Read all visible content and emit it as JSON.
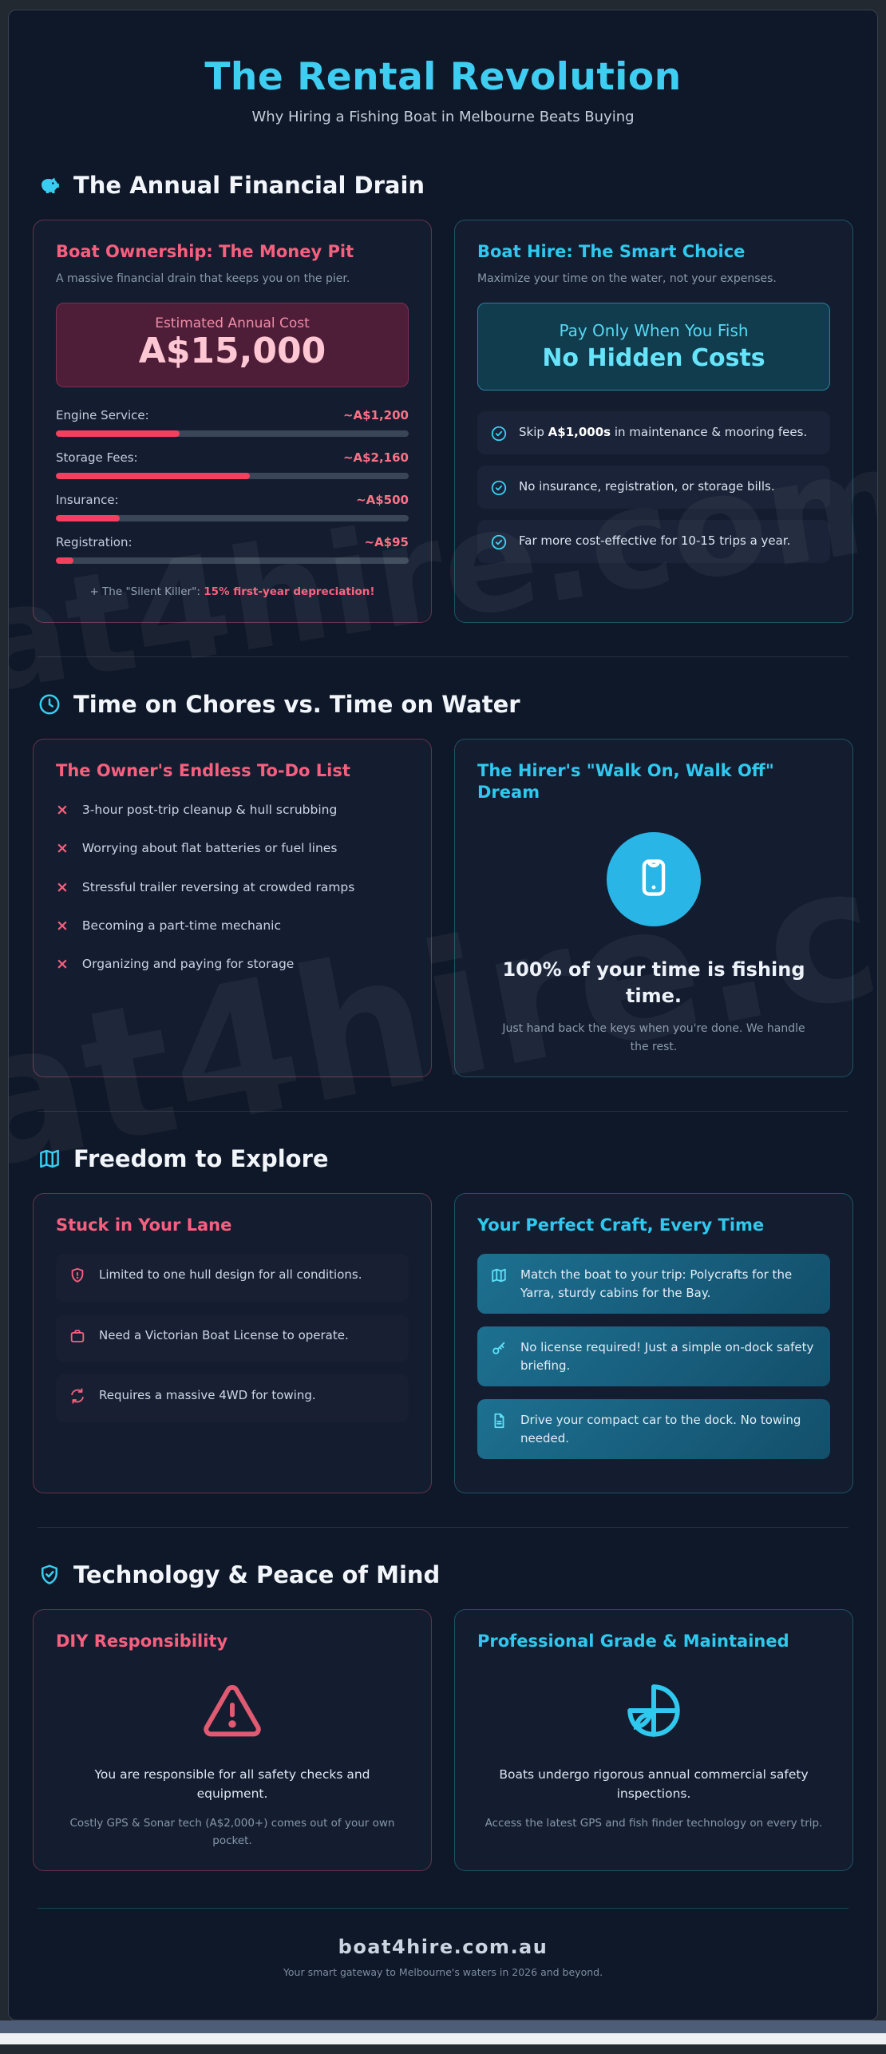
{
  "page": {
    "title": "The Rental Revolution",
    "subtitle": "Why Hiring a Fishing Boat in Melbourne Beats Buying",
    "watermark": "at4hire.com"
  },
  "colors": {
    "accent_cyan": "#38cdf1",
    "accent_pink": "#f6607e",
    "progress_fill": "#f43f5e",
    "cost_box_bg": "#4e1e38",
    "teal_box_bg": "#103c4e",
    "page_bg": "#0f1828"
  },
  "financial": {
    "heading": "The Annual Financial Drain",
    "owner": {
      "title": "Boat Ownership: The Money Pit",
      "subtitle": "A massive financial drain that keeps you on the pier.",
      "cost_label": "Estimated Annual Cost",
      "cost_value": "A$15,000",
      "items": [
        {
          "label": "Engine Service:",
          "value": "~A$1,200",
          "pct": 35
        },
        {
          "label": "Storage Fees:",
          "value": "~A$2,160",
          "pct": 55
        },
        {
          "label": "Insurance:",
          "value": "~A$500",
          "pct": 18
        },
        {
          "label": "Registration:",
          "value": "~A$95",
          "pct": 5
        }
      ],
      "note_prefix": "+ The \"Silent Killer\": ",
      "note_bold": "15% first-year depreciation!"
    },
    "hire": {
      "title": "Boat Hire: The Smart Choice",
      "subtitle": "Maximize your time on the water, not your expenses.",
      "banner_line1": "Pay Only When You Fish",
      "banner_line2": "No Hidden Costs",
      "benefits": [
        {
          "pre": "Skip ",
          "bold": "A$1,000s",
          "post": " in maintenance & mooring fees."
        },
        {
          "pre": "No insurance, registration, or storage bills.",
          "bold": "",
          "post": ""
        },
        {
          "pre": "Far more cost-effective for 10-15 trips a year.",
          "bold": "",
          "post": ""
        }
      ]
    }
  },
  "time": {
    "heading": "Time on Chores vs. Time on Water",
    "owner": {
      "title": "The Owner's Endless To-Do List",
      "items": [
        "3-hour post-trip cleanup & hull scrubbing",
        "Worrying about flat batteries or fuel lines",
        "Stressful trailer reversing at crowded ramps",
        "Becoming a part-time mechanic",
        "Organizing and paying for storage"
      ]
    },
    "hirer": {
      "title": "The Hirer's \"Walk On, Walk Off\" Dream",
      "headline": "100% of your time is fishing time.",
      "subtext": "Just hand back the keys when you're done. We handle the rest."
    }
  },
  "freedom": {
    "heading": "Freedom to Explore",
    "owner": {
      "title": "Stuck in Your Lane",
      "items": [
        "Limited to one hull design for all conditions.",
        "Need a Victorian Boat License to operate.",
        "Requires a massive 4WD for towing."
      ]
    },
    "hire": {
      "title": "Your Perfect Craft, Every Time",
      "items": [
        "Match the boat to your trip: Polycrafts for the Yarra, sturdy cabins for the Bay.",
        "No license required! Just a simple on-dock safety briefing.",
        "Drive your compact car to the dock. No towing needed."
      ]
    }
  },
  "tech": {
    "heading": "Technology & Peace of Mind",
    "owner": {
      "title": "DIY Responsibility",
      "main": "You are responsible for all safety checks and equipment.",
      "sub": "Costly GPS & Sonar tech (A$2,000+) comes out of your own pocket."
    },
    "hire": {
      "title": "Professional Grade & Maintained",
      "main": "Boats undergo rigorous annual commercial safety inspections.",
      "sub": "Access the latest GPS and fish finder technology on every trip."
    }
  },
  "footer": {
    "domain": "boat4hire.com.au",
    "tagline": "Your smart gateway to Melbourne's waters in 2026 and beyond."
  }
}
